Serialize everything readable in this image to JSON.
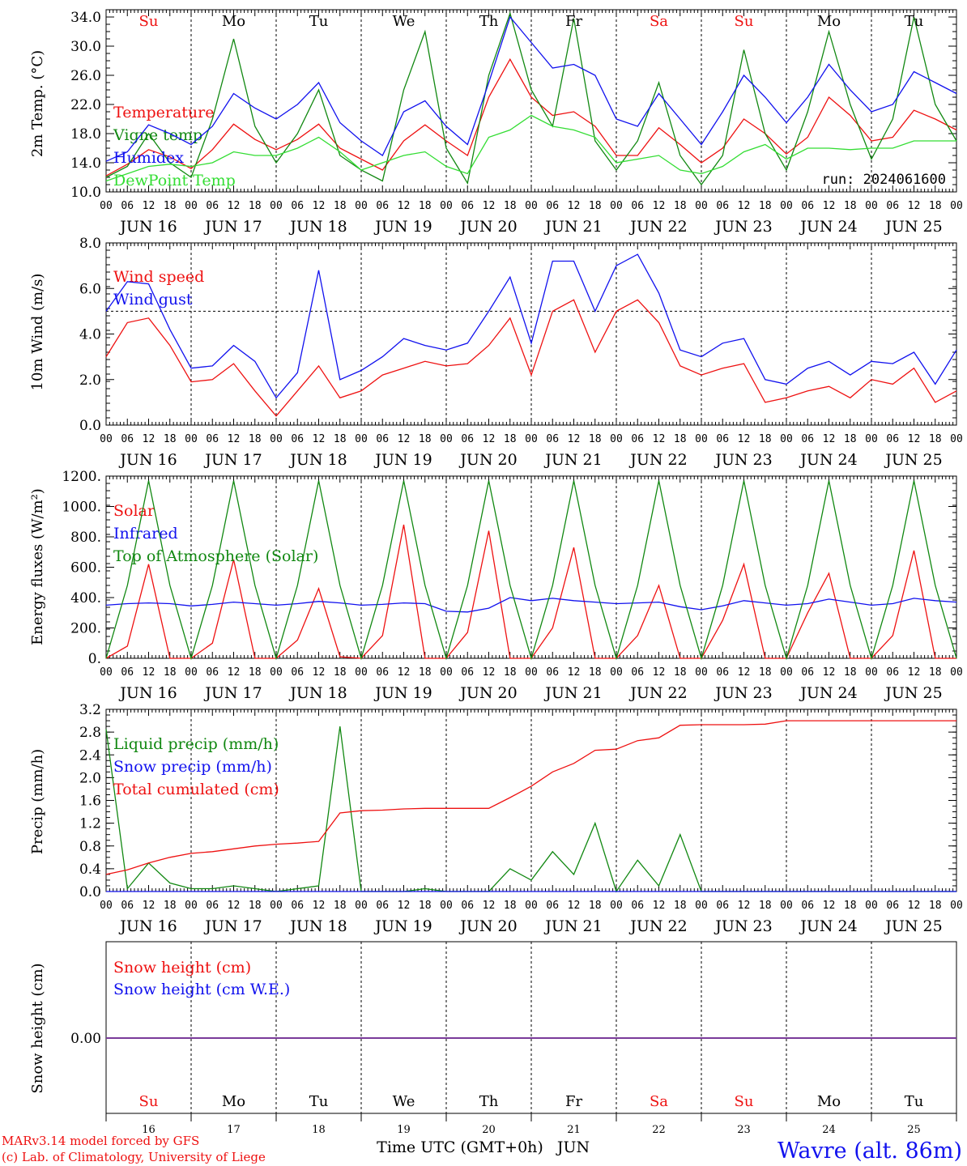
{
  "chart_data": [
    {
      "type": "line",
      "ylabel": "2m Temp. (°C)",
      "ylim": [
        10.0,
        35.0
      ],
      "yticks": [
        "10.0",
        "14.0",
        "18.0",
        "22.0",
        "26.0",
        "30.0",
        "34.0"
      ],
      "annotation": "run: 2024061600",
      "x": [
        "2024-06-16T00",
        "2024-06-16T06",
        "2024-06-16T12",
        "2024-06-16T18",
        "2024-06-17T00",
        "2024-06-17T06",
        "2024-06-17T12",
        "2024-06-17T18",
        "2024-06-18T00",
        "2024-06-18T06",
        "2024-06-18T12",
        "2024-06-18T18",
        "2024-06-19T00",
        "2024-06-19T06",
        "2024-06-19T12",
        "2024-06-19T18",
        "2024-06-20T00",
        "2024-06-20T06",
        "2024-06-20T12",
        "2024-06-20T18",
        "2024-06-21T00",
        "2024-06-21T06",
        "2024-06-21T12",
        "2024-06-21T18",
        "2024-06-22T00",
        "2024-06-22T06",
        "2024-06-22T12",
        "2024-06-22T18",
        "2024-06-23T00",
        "2024-06-23T06",
        "2024-06-23T12",
        "2024-06-23T18",
        "2024-06-24T00",
        "2024-06-24T06",
        "2024-06-24T12",
        "2024-06-24T18",
        "2024-06-25T00",
        "2024-06-25T06",
        "2024-06-25T12",
        "2024-06-25T18",
        "2024-06-26T00"
      ],
      "series": [
        {
          "name": "Temperature",
          "color": "#ee1111",
          "values": [
            12.2,
            13.8,
            15.8,
            14.8,
            13.2,
            15.8,
            19.3,
            17.2,
            15.8,
            17.2,
            19.3,
            16.0,
            14.5,
            13.0,
            17.0,
            19.2,
            17.0,
            15.0,
            23.0,
            28.2,
            23.0,
            20.5,
            21.0,
            19.0,
            15.0,
            15.0,
            18.8,
            16.5,
            14.0,
            16.0,
            20.0,
            18.0,
            15.2,
            17.5,
            23.0,
            20.5,
            17.0,
            17.5,
            21.2,
            20.0,
            18.5
          ]
        },
        {
          "name": "Vigne temp",
          "color": "#118811",
          "values": [
            12.0,
            13.5,
            18.0,
            14.0,
            12.0,
            20.0,
            31.0,
            19.0,
            14.0,
            18.0,
            24.0,
            15.0,
            13.0,
            11.5,
            24.0,
            32.0,
            16.0,
            11.2,
            26.0,
            34.5,
            24.0,
            19.0,
            33.8,
            17.0,
            13.0,
            17.0,
            25.0,
            15.0,
            11.0,
            15.0,
            29.5,
            18.0,
            13.0,
            21.0,
            32.0,
            22.0,
            14.5,
            20.0,
            34.0,
            22.0,
            17.0
          ]
        },
        {
          "name": "Humidex",
          "color": "#1111ee",
          "values": [
            14.2,
            15.5,
            19.2,
            18.0,
            16.5,
            19.0,
            23.5,
            21.5,
            20.0,
            22.0,
            25.0,
            19.5,
            17.0,
            15.0,
            21.0,
            22.5,
            19.0,
            16.5,
            25.0,
            34.0,
            30.5,
            27.0,
            27.5,
            26.0,
            20.0,
            19.0,
            23.5,
            20.0,
            16.5,
            21.0,
            26.0,
            23.0,
            19.5,
            23.0,
            27.5,
            24.0,
            21.0,
            22.0,
            26.5,
            25.0,
            23.5
          ]
        },
        {
          "name": "DewPoint Temp",
          "color": "#33dd33",
          "values": [
            11.5,
            12.5,
            13.5,
            13.8,
            13.5,
            14.0,
            15.5,
            15.0,
            15.0,
            16.0,
            17.5,
            15.5,
            13.0,
            14.0,
            15.0,
            15.5,
            13.5,
            12.5,
            17.5,
            18.5,
            20.5,
            19.0,
            18.5,
            17.5,
            14.0,
            14.5,
            15.0,
            13.0,
            12.5,
            13.5,
            15.5,
            16.5,
            14.5,
            16.0,
            16.0,
            15.8,
            16.0,
            16.0,
            17.0,
            17.0,
            17.0
          ]
        }
      ]
    },
    {
      "type": "line",
      "ylabel": "10m Wind (m/s)",
      "ylim": [
        0.0,
        8.0
      ],
      "yticks": [
        "0.0",
        "2.0",
        "4.0",
        "6.0",
        "8.0"
      ],
      "x": [
        "2024-06-16T00",
        "2024-06-16T06",
        "2024-06-16T12",
        "2024-06-16T18",
        "2024-06-17T00",
        "2024-06-17T06",
        "2024-06-17T12",
        "2024-06-17T18",
        "2024-06-18T00",
        "2024-06-18T06",
        "2024-06-18T12",
        "2024-06-18T18",
        "2024-06-19T00",
        "2024-06-19T06",
        "2024-06-19T12",
        "2024-06-19T18",
        "2024-06-20T00",
        "2024-06-20T06",
        "2024-06-20T12",
        "2024-06-20T18",
        "2024-06-21T00",
        "2024-06-21T06",
        "2024-06-21T12",
        "2024-06-21T18",
        "2024-06-22T00",
        "2024-06-22T06",
        "2024-06-22T12",
        "2024-06-22T18",
        "2024-06-23T00",
        "2024-06-23T06",
        "2024-06-23T12",
        "2024-06-23T18",
        "2024-06-24T00",
        "2024-06-24T06",
        "2024-06-24T12",
        "2024-06-24T18",
        "2024-06-25T00",
        "2024-06-25T06",
        "2024-06-25T12",
        "2024-06-25T18",
        "2024-06-26T00"
      ],
      "series": [
        {
          "name": "Wind speed",
          "color": "#ee1111",
          "values": [
            3.0,
            4.5,
            4.7,
            3.5,
            1.9,
            2.0,
            2.7,
            1.5,
            0.4,
            1.5,
            2.6,
            1.2,
            1.5,
            2.2,
            2.5,
            2.8,
            2.6,
            2.7,
            3.5,
            4.7,
            2.2,
            5.0,
            5.5,
            3.2,
            5.0,
            5.5,
            4.5,
            2.6,
            2.2,
            2.5,
            2.7,
            1.0,
            1.2,
            1.5,
            1.7,
            1.2,
            2.0,
            1.8,
            2.5,
            1.0,
            1.5
          ]
        },
        {
          "name": "Wind gust",
          "color": "#1111ee",
          "values": [
            5.0,
            6.3,
            6.2,
            4.2,
            2.5,
            2.6,
            3.5,
            2.8,
            1.2,
            2.3,
            6.8,
            2.0,
            2.4,
            3.0,
            3.8,
            3.5,
            3.3,
            3.6,
            5.0,
            6.5,
            3.6,
            7.2,
            7.2,
            5.0,
            7.0,
            7.5,
            5.8,
            3.3,
            3.0,
            3.6,
            3.8,
            2.0,
            1.8,
            2.5,
            2.8,
            2.2,
            2.8,
            2.7,
            3.2,
            1.8,
            3.3
          ]
        }
      ]
    },
    {
      "type": "line",
      "ylabel": "Energy fluxes (W/m²)",
      "ylim": [
        0,
        1200
      ],
      "yticks": [
        "0.",
        "200.",
        "400.",
        "600.",
        "800.",
        "1000.",
        "1200."
      ],
      "x": [
        "2024-06-16T00",
        "2024-06-16T06",
        "2024-06-16T12",
        "2024-06-16T18",
        "2024-06-17T00",
        "2024-06-17T06",
        "2024-06-17T12",
        "2024-06-17T18",
        "2024-06-18T00",
        "2024-06-18T06",
        "2024-06-18T12",
        "2024-06-18T18",
        "2024-06-19T00",
        "2024-06-19T06",
        "2024-06-19T12",
        "2024-06-19T18",
        "2024-06-20T00",
        "2024-06-20T06",
        "2024-06-20T12",
        "2024-06-20T18",
        "2024-06-21T00",
        "2024-06-21T06",
        "2024-06-21T12",
        "2024-06-21T18",
        "2024-06-22T00",
        "2024-06-22T06",
        "2024-06-22T12",
        "2024-06-22T18",
        "2024-06-23T00",
        "2024-06-23T06",
        "2024-06-23T12",
        "2024-06-23T18",
        "2024-06-24T00",
        "2024-06-24T06",
        "2024-06-24T12",
        "2024-06-24T18",
        "2024-06-25T00",
        "2024-06-25T06",
        "2024-06-25T12",
        "2024-06-25T18",
        "2024-06-26T00"
      ],
      "series": [
        {
          "name": "Solar",
          "color": "#ee1111",
          "values": [
            0,
            80,
            620,
            0,
            0,
            100,
            650,
            0,
            0,
            120,
            460,
            10,
            0,
            150,
            880,
            0,
            0,
            170,
            840,
            0,
            0,
            200,
            730,
            0,
            0,
            150,
            480,
            0,
            0,
            250,
            620,
            0,
            0,
            300,
            560,
            0,
            0,
            150,
            710,
            0,
            0
          ]
        },
        {
          "name": "Infrared",
          "color": "#1111ee",
          "values": [
            350,
            360,
            365,
            360,
            345,
            355,
            370,
            360,
            350,
            360,
            375,
            365,
            350,
            355,
            365,
            360,
            310,
            305,
            330,
            400,
            380,
            395,
            380,
            370,
            360,
            365,
            370,
            340,
            320,
            345,
            380,
            365,
            350,
            360,
            390,
            370,
            350,
            360,
            395,
            380,
            370
          ]
        },
        {
          "name": "Top of Atmosphere (Solar)",
          "color": "#118811",
          "values": [
            0,
            480,
            1170,
            480,
            0,
            480,
            1170,
            480,
            0,
            480,
            1170,
            480,
            0,
            480,
            1170,
            480,
            0,
            480,
            1170,
            480,
            0,
            480,
            1170,
            480,
            0,
            480,
            1170,
            480,
            0,
            480,
            1170,
            480,
            0,
            480,
            1170,
            480,
            0,
            480,
            1170,
            480,
            0
          ]
        }
      ]
    },
    {
      "type": "line",
      "ylabel": "Precip (mm/h)",
      "ylim": [
        0.0,
        3.2
      ],
      "yticks": [
        "0.0",
        "0.4",
        "0.8",
        "1.2",
        "1.6",
        "2.0",
        "2.4",
        "2.8",
        "3.2"
      ],
      "x": [
        "2024-06-16T00",
        "2024-06-16T06",
        "2024-06-16T12",
        "2024-06-16T18",
        "2024-06-17T00",
        "2024-06-17T06",
        "2024-06-17T12",
        "2024-06-17T18",
        "2024-06-18T00",
        "2024-06-18T06",
        "2024-06-18T12",
        "2024-06-18T18",
        "2024-06-19T00",
        "2024-06-19T06",
        "2024-06-19T12",
        "2024-06-19T18",
        "2024-06-20T00",
        "2024-06-20T06",
        "2024-06-20T12",
        "2024-06-20T18",
        "2024-06-21T00",
        "2024-06-21T06",
        "2024-06-21T12",
        "2024-06-21T18",
        "2024-06-22T00",
        "2024-06-22T06",
        "2024-06-22T12",
        "2024-06-22T18",
        "2024-06-23T00",
        "2024-06-23T06",
        "2024-06-23T12",
        "2024-06-23T18",
        "2024-06-24T00",
        "2024-06-24T06",
        "2024-06-24T12",
        "2024-06-24T18",
        "2024-06-25T00",
        "2024-06-25T06",
        "2024-06-25T12",
        "2024-06-25T18",
        "2024-06-26T00"
      ],
      "series": [
        {
          "name": "Liquid precip (mm/h)",
          "color": "#118811",
          "values": [
            2.85,
            0.05,
            0.5,
            0.15,
            0.05,
            0.05,
            0.1,
            0.05,
            0.0,
            0.05,
            0.1,
            2.9,
            0.0,
            0.0,
            0.0,
            0.05,
            0.0,
            0.0,
            0.0,
            0.4,
            0.2,
            0.7,
            0.3,
            1.2,
            0.0,
            0.55,
            0.1,
            1.0,
            0.0,
            0.0,
            0.0,
            0.0,
            0.0,
            0.0,
            0.0,
            0.0,
            0.0,
            0.0,
            0.0,
            0.0,
            0.0
          ]
        },
        {
          "name": "Snow precip (mm/h)",
          "color": "#1111ee",
          "values": [
            0,
            0,
            0,
            0,
            0,
            0,
            0,
            0,
            0,
            0,
            0,
            0,
            0,
            0,
            0,
            0,
            0,
            0,
            0,
            0,
            0,
            0,
            0,
            0,
            0,
            0,
            0,
            0,
            0,
            0,
            0,
            0,
            0,
            0,
            0,
            0,
            0,
            0,
            0,
            0,
            0
          ]
        },
        {
          "name": "Total cumulated (cm)",
          "color": "#ee1111",
          "values": [
            0.3,
            0.38,
            0.5,
            0.6,
            0.67,
            0.7,
            0.75,
            0.8,
            0.83,
            0.85,
            0.88,
            1.38,
            1.42,
            1.43,
            1.45,
            1.46,
            1.46,
            1.46,
            1.46,
            1.65,
            1.85,
            2.1,
            2.25,
            2.48,
            2.5,
            2.65,
            2.7,
            2.92,
            2.93,
            2.93,
            2.93,
            2.94,
            3.0,
            3.0,
            3.0,
            3.0,
            3.0,
            3.0,
            3.0,
            3.0,
            3.0
          ]
        }
      ]
    },
    {
      "type": "line",
      "ylabel": "Snow height (cm)",
      "yticks": [
        "0.00"
      ],
      "x": [
        "2024-06-16T00",
        "2024-06-26T00"
      ],
      "series": [
        {
          "name": "Snow height (cm)",
          "color": "#ee1111",
          "values": [
            0.0,
            0.0
          ]
        },
        {
          "name": "Snow height (cm W.E.)",
          "color": "#1111ee",
          "values": [
            0.0,
            0.0
          ]
        }
      ]
    }
  ],
  "hour_labels": [
    "00",
    "06",
    "12",
    "18"
  ],
  "date_labels": [
    "JUN 16",
    "JUN 17",
    "JUN 18",
    "JUN 19",
    "JUN 20",
    "JUN 21",
    "JUN 22",
    "JUN 23",
    "JUN 24",
    "JUN 25"
  ],
  "weekdays": [
    {
      "label": "Su",
      "color": "#ee1111"
    },
    {
      "label": "Mo",
      "color": "#000000"
    },
    {
      "label": "Tu",
      "color": "#000000"
    },
    {
      "label": "We",
      "color": "#000000"
    },
    {
      "label": "Th",
      "color": "#000000"
    },
    {
      "label": "Fr",
      "color": "#000000"
    },
    {
      "label": "Sa",
      "color": "#ee1111"
    },
    {
      "label": "Su",
      "color": "#ee1111"
    },
    {
      "label": "Mo",
      "color": "#000000"
    },
    {
      "label": "Tu",
      "color": "#000000"
    }
  ],
  "day_numbers": [
    "16",
    "17",
    "18",
    "19",
    "20",
    "21",
    "22",
    "23",
    "24",
    "25"
  ],
  "bottom": {
    "xlabel": "Time UTC (GMT+0h)",
    "month": "JUN",
    "credit_line1": "MARv3.14 model forced by GFS",
    "credit_line2": "(c) Lab. of Climatology, University of Liege",
    "station": "Wavre (alt. 86m)"
  },
  "colors": {
    "red": "#ee1111",
    "green": "#118811",
    "blue": "#1111ee",
    "lightgreen": "#33dd33",
    "purple": "#7a3a9a"
  }
}
